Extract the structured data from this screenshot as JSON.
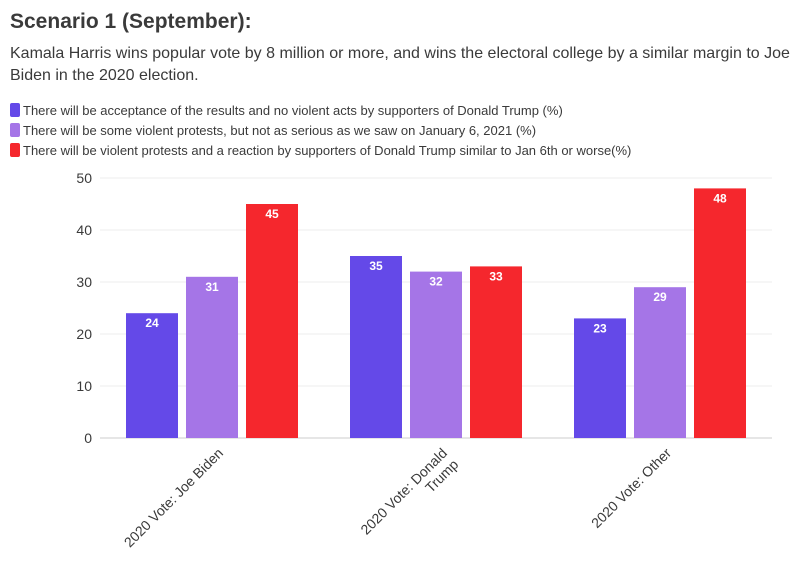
{
  "title": "Scenario 1 (September):",
  "subtitle": "Kamala Harris wins popular vote by 8 million or more, and wins the electoral college by a similar margin to Joe Biden in the 2020 election.",
  "chart_data": {
    "type": "bar",
    "categories": [
      "2020 Vote: Joe Biden",
      "2020 Vote: Donald Trump",
      "2020 Vote: Other"
    ],
    "category_lines": [
      [
        "2020 Vote: Joe Biden"
      ],
      [
        "2020 Vote: Donald",
        "Trump"
      ],
      [
        "2020 Vote: Other"
      ]
    ],
    "series": [
      {
        "name": "There will be acceptance of the results and no violent acts by supporters of Donald Trump (%)",
        "values": [
          24,
          35,
          23
        ],
        "color": "#6449e8"
      },
      {
        "name": "There will be some violent protests, but not as serious as we saw on January 6, 2021 (%)",
        "values": [
          31,
          32,
          29
        ],
        "color": "#a575e7"
      },
      {
        "name": "There will be violent protests and a reaction by supporters of Donald Trump similar to Jan 6th or worse(%)",
        "values": [
          45,
          33,
          48
        ],
        "color": "#f5272d"
      }
    ],
    "ylim": [
      0,
      50
    ],
    "yticks": [
      0,
      10,
      20,
      30,
      40,
      50
    ],
    "grid": true,
    "legend_position": "top-left",
    "xlabel": "",
    "ylabel": ""
  }
}
